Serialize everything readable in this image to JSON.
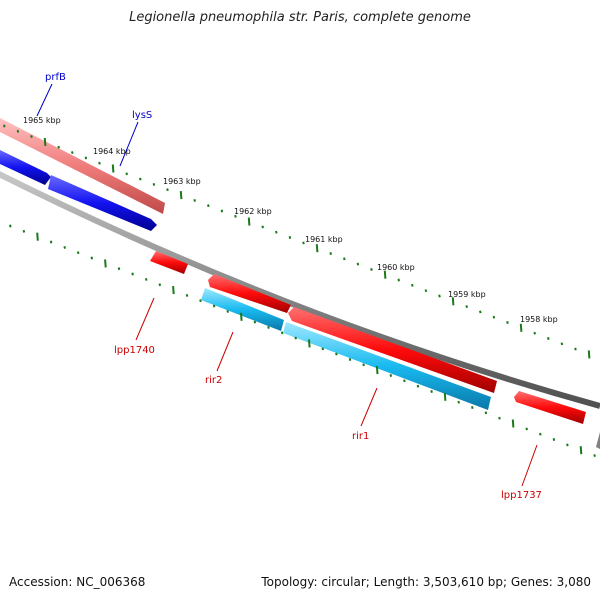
{
  "title": "Legionella pneumophila str. Paris, complete genome",
  "footer": {
    "accession": "Accession: NC_006368",
    "summary": "Topology: circular; Length: 3,503,610 bp; Genes: 3,080"
  },
  "scale": {
    "unit": "kbp",
    "labels": [
      "1965 kbp",
      "1964 kbp",
      "1963 kbp",
      "1962 kbp",
      "1961 kbp",
      "1960 kbp",
      "1959 kbp",
      "1958 kbp"
    ]
  },
  "genes": [
    {
      "name": "prfB",
      "strand": "forward",
      "color": "#0000cc"
    },
    {
      "name": "lysS",
      "strand": "forward",
      "color": "#0000cc"
    },
    {
      "name": "lpp1740",
      "strand": "reverse",
      "color": "#cc0000"
    },
    {
      "name": "rir2",
      "strand": "reverse",
      "color": "#cc0000"
    },
    {
      "name": "rir1",
      "strand": "reverse",
      "color": "#cc0000"
    },
    {
      "name": "lpp1737",
      "strand": "reverse",
      "color": "#cc0000"
    }
  ],
  "colors": {
    "forward_cds": "#1a1aff",
    "forward_gene": "#f08080",
    "reverse_cds": "#ff1a1a",
    "reverse_gene": "#22c4f0",
    "backbone": "#808080",
    "ticks": "#1a7a1a"
  }
}
